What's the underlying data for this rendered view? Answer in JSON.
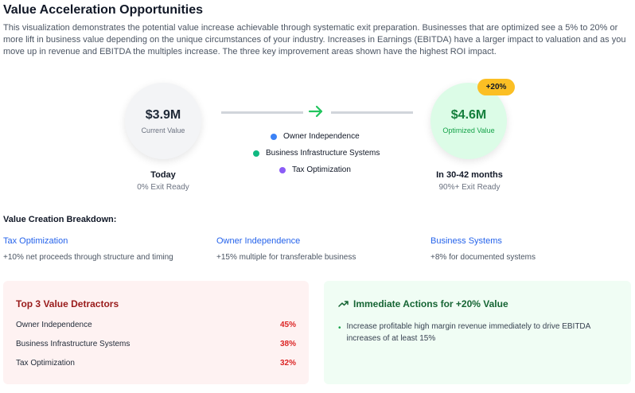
{
  "header": {
    "title": "Value Acceleration Opportunities",
    "description": "This visualization demonstrates the potential value increase achievable through systematic exit preparation. Businesses that are optimized see a 5% to 20% or more lift in business value depending on the unique circumstances of your industry. Increases in Earnings (EBITDA) have a larger impact to valuation and as you move up in revenue and EBITDA the multiples increase. The three key improvement areas shown have the highest ROI impact."
  },
  "current": {
    "amount": "$3.9M",
    "label": "Current Value",
    "caption": "Today",
    "status": "0% Exit Ready"
  },
  "optimized": {
    "amount": "$4.6M",
    "label": "Optimized Value",
    "badge": "+20%",
    "caption": "In 30-42 months",
    "status": "90%+ Exit Ready"
  },
  "legend": [
    {
      "label": "Owner Independence",
      "color": "#3b82f6"
    },
    {
      "label": "Business Infrastructure Systems",
      "color": "#10b981"
    },
    {
      "label": "Tax Optimization",
      "color": "#8b5cf6"
    }
  ],
  "breakdown": {
    "title": "Value Creation Breakdown:",
    "items": [
      {
        "name": "Tax Optimization",
        "text": "+10% net proceeds through structure and timing"
      },
      {
        "name": "Owner Independence",
        "text": "+15% multiple for transferable business"
      },
      {
        "name": "Business Systems",
        "text": "+8% for documented systems"
      }
    ]
  },
  "detractors": {
    "title": "Top 3 Value Detractors",
    "rows": [
      {
        "label": "Owner Independence",
        "pct": "45%"
      },
      {
        "label": "Business Infrastructure Systems",
        "pct": "38%"
      },
      {
        "label": "Tax Optimization",
        "pct": "32%"
      }
    ]
  },
  "actions": {
    "title": "Immediate Actions for +20% Value",
    "items": [
      "Increase profitable high margin revenue immediately to drive EBITDA increases of at least 15%"
    ]
  }
}
